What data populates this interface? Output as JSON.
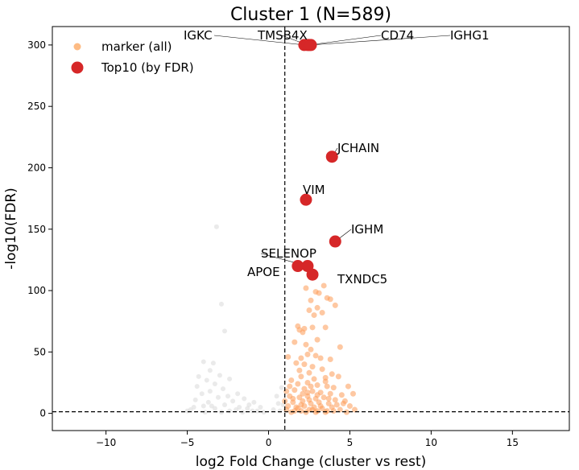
{
  "chart_data": {
    "type": "scatter",
    "title": "Cluster 1 (N=589)",
    "xlabel": "log2 Fold Change (cluster vs rest)",
    "ylabel": "-log10(FDR)",
    "xlim": [
      -13.3,
      18.5
    ],
    "ylim": [
      -14,
      315
    ],
    "x_ticks": [
      -10,
      -5,
      0,
      5,
      10,
      15
    ],
    "y_ticks": [
      0,
      50,
      100,
      150,
      200,
      250,
      300
    ],
    "thresholds": {
      "vline_x": 1.0,
      "hline_y": 1.3
    },
    "grid": false,
    "legend": {
      "position": "top-left",
      "entries": [
        {
          "label": "marker (all)",
          "color": "#fdbb84"
        },
        {
          "label": "Top10 (by FDR)",
          "color": "#d62728"
        }
      ]
    },
    "colors": {
      "background_points": "#d9d9d9",
      "marker": "#fd9a55",
      "top10": "#d62728"
    },
    "series": [
      {
        "name": "marker (all)",
        "points": [
          [
            2.3,
            102
          ],
          [
            2.9,
            99
          ],
          [
            3.1,
            98
          ],
          [
            3.4,
            104
          ],
          [
            3.6,
            94
          ],
          [
            3.8,
            93
          ],
          [
            2.6,
            92
          ],
          [
            4.1,
            88
          ],
          [
            3.0,
            86
          ],
          [
            2.5,
            84
          ],
          [
            3.3,
            82
          ],
          [
            2.8,
            80
          ],
          [
            1.8,
            71
          ],
          [
            1.9,
            68
          ],
          [
            2.2,
            69
          ],
          [
            2.1,
            66
          ],
          [
            2.7,
            70
          ],
          [
            3.5,
            70
          ],
          [
            3.0,
            60
          ],
          [
            4.4,
            54
          ],
          [
            2.9,
            47
          ],
          [
            2.0,
            45
          ],
          [
            1.2,
            46
          ],
          [
            1.6,
            58
          ],
          [
            2.3,
            56
          ],
          [
            2.6,
            52
          ],
          [
            2.4,
            48
          ],
          [
            3.2,
            45
          ],
          [
            3.8,
            44
          ],
          [
            1.7,
            41
          ],
          [
            2.2,
            40
          ],
          [
            2.7,
            38
          ],
          [
            3.3,
            36
          ],
          [
            3.9,
            32
          ],
          [
            1.9,
            35
          ],
          [
            2.5,
            33
          ],
          [
            2.0,
            30
          ],
          [
            2.8,
            28
          ],
          [
            3.5,
            29
          ],
          [
            4.3,
            30
          ],
          [
            1.4,
            27
          ],
          [
            1.8,
            24
          ],
          [
            2.4,
            25
          ],
          [
            3.0,
            23
          ],
          [
            3.6,
            22
          ],
          [
            4.0,
            21
          ],
          [
            4.9,
            22
          ],
          [
            1.1,
            18
          ],
          [
            1.6,
            19
          ],
          [
            2.2,
            20
          ],
          [
            2.7,
            18
          ],
          [
            3.2,
            17
          ],
          [
            3.8,
            16
          ],
          [
            4.5,
            15
          ],
          [
            5.2,
            16
          ],
          [
            1.3,
            14
          ],
          [
            1.9,
            13
          ],
          [
            2.4,
            14
          ],
          [
            2.9,
            12
          ],
          [
            3.4,
            13
          ],
          [
            4.1,
            11
          ],
          [
            4.7,
            10
          ],
          [
            1.0,
            10
          ],
          [
            1.5,
            9
          ],
          [
            2.1,
            10
          ],
          [
            2.6,
            8
          ],
          [
            3.1,
            9
          ],
          [
            3.7,
            8
          ],
          [
            4.2,
            7
          ],
          [
            5.0,
            6
          ],
          [
            1.2,
            6
          ],
          [
            1.7,
            5
          ],
          [
            2.2,
            6
          ],
          [
            2.8,
            5
          ],
          [
            3.3,
            4
          ],
          [
            3.9,
            5
          ],
          [
            4.4,
            3
          ],
          [
            5.3,
            3
          ],
          [
            1.1,
            3
          ],
          [
            1.6,
            2
          ],
          [
            2.0,
            2
          ],
          [
            2.5,
            3
          ],
          [
            3.0,
            2
          ],
          [
            3.5,
            1
          ],
          [
            4.0,
            2
          ],
          [
            4.8,
            1
          ],
          [
            1.4,
            1
          ],
          [
            2.3,
            1
          ],
          [
            2.9,
            1
          ],
          [
            3.6,
            2
          ],
          [
            1.8,
            4
          ],
          [
            2.7,
            3
          ],
          [
            3.2,
            6
          ],
          [
            2.0,
            7
          ],
          [
            2.5,
            11
          ],
          [
            3.0,
            15
          ],
          [
            2.1,
            16
          ],
          [
            1.5,
            12
          ],
          [
            3.5,
            26
          ],
          [
            2.6,
            22
          ],
          [
            1.3,
            22
          ],
          [
            2.4,
            17
          ],
          [
            3.7,
            12
          ],
          [
            4.6,
            8
          ]
        ]
      },
      {
        "name": "rest (gray)",
        "points": [
          [
            -3.2,
            152
          ],
          [
            -2.9,
            89
          ],
          [
            -2.7,
            67
          ],
          [
            -4.0,
            42
          ],
          [
            -3.4,
            41
          ],
          [
            -3.6,
            35
          ],
          [
            -3.0,
            31
          ],
          [
            -4.3,
            30
          ],
          [
            -3.8,
            27
          ],
          [
            -2.4,
            28
          ],
          [
            -3.3,
            24
          ],
          [
            -4.4,
            22
          ],
          [
            -2.8,
            20
          ],
          [
            -3.6,
            18
          ],
          [
            -4.1,
            16
          ],
          [
            -1.9,
            16
          ],
          [
            -2.5,
            14
          ],
          [
            -3.1,
            13
          ],
          [
            -4.5,
            11
          ],
          [
            -1.5,
            12
          ],
          [
            -2.2,
            10
          ],
          [
            -3.7,
            9
          ],
          [
            -0.9,
            9
          ],
          [
            0.6,
            8
          ],
          [
            -1.2,
            7
          ],
          [
            -2.7,
            7
          ],
          [
            -4.0,
            6
          ],
          [
            -0.5,
            5
          ],
          [
            -1.8,
            5
          ],
          [
            -3.3,
            4
          ],
          [
            -4.8,
            3
          ],
          [
            0.3,
            3
          ],
          [
            -1.0,
            2
          ],
          [
            -2.4,
            2
          ],
          [
            -3.9,
            1
          ],
          [
            0.7,
            2
          ],
          [
            -0.3,
            1
          ],
          [
            -1.6,
            1
          ],
          [
            -2.9,
            1
          ],
          [
            0.8,
            21
          ],
          [
            0.5,
            14
          ],
          [
            0.9,
            7
          ],
          [
            -5.0,
            2
          ],
          [
            -4.6,
            5
          ],
          [
            -2.0,
            3
          ],
          [
            -3.5,
            6
          ],
          [
            -1.3,
            4
          ],
          [
            -0.7,
            2
          ]
        ]
      },
      {
        "name": "Top10 (by FDR)",
        "points": [
          {
            "gene": "IGKC",
            "x": 2.2,
            "y": 300
          },
          {
            "gene": "TMSB4X",
            "x": 2.4,
            "y": 300
          },
          {
            "gene": "CD74",
            "x": 2.5,
            "y": 300
          },
          {
            "gene": "IGHG1",
            "x": 2.6,
            "y": 300
          },
          {
            "gene": "JCHAIN",
            "x": 3.9,
            "y": 209
          },
          {
            "gene": "VIM",
            "x": 2.3,
            "y": 174
          },
          {
            "gene": "IGHM",
            "x": 4.1,
            "y": 140
          },
          {
            "gene": "SELENOP",
            "x": 2.4,
            "y": 120
          },
          {
            "gene": "APOE",
            "x": 1.8,
            "y": 120
          },
          {
            "gene": "TXNDC5",
            "x": 2.7,
            "y": 113
          }
        ]
      }
    ]
  }
}
